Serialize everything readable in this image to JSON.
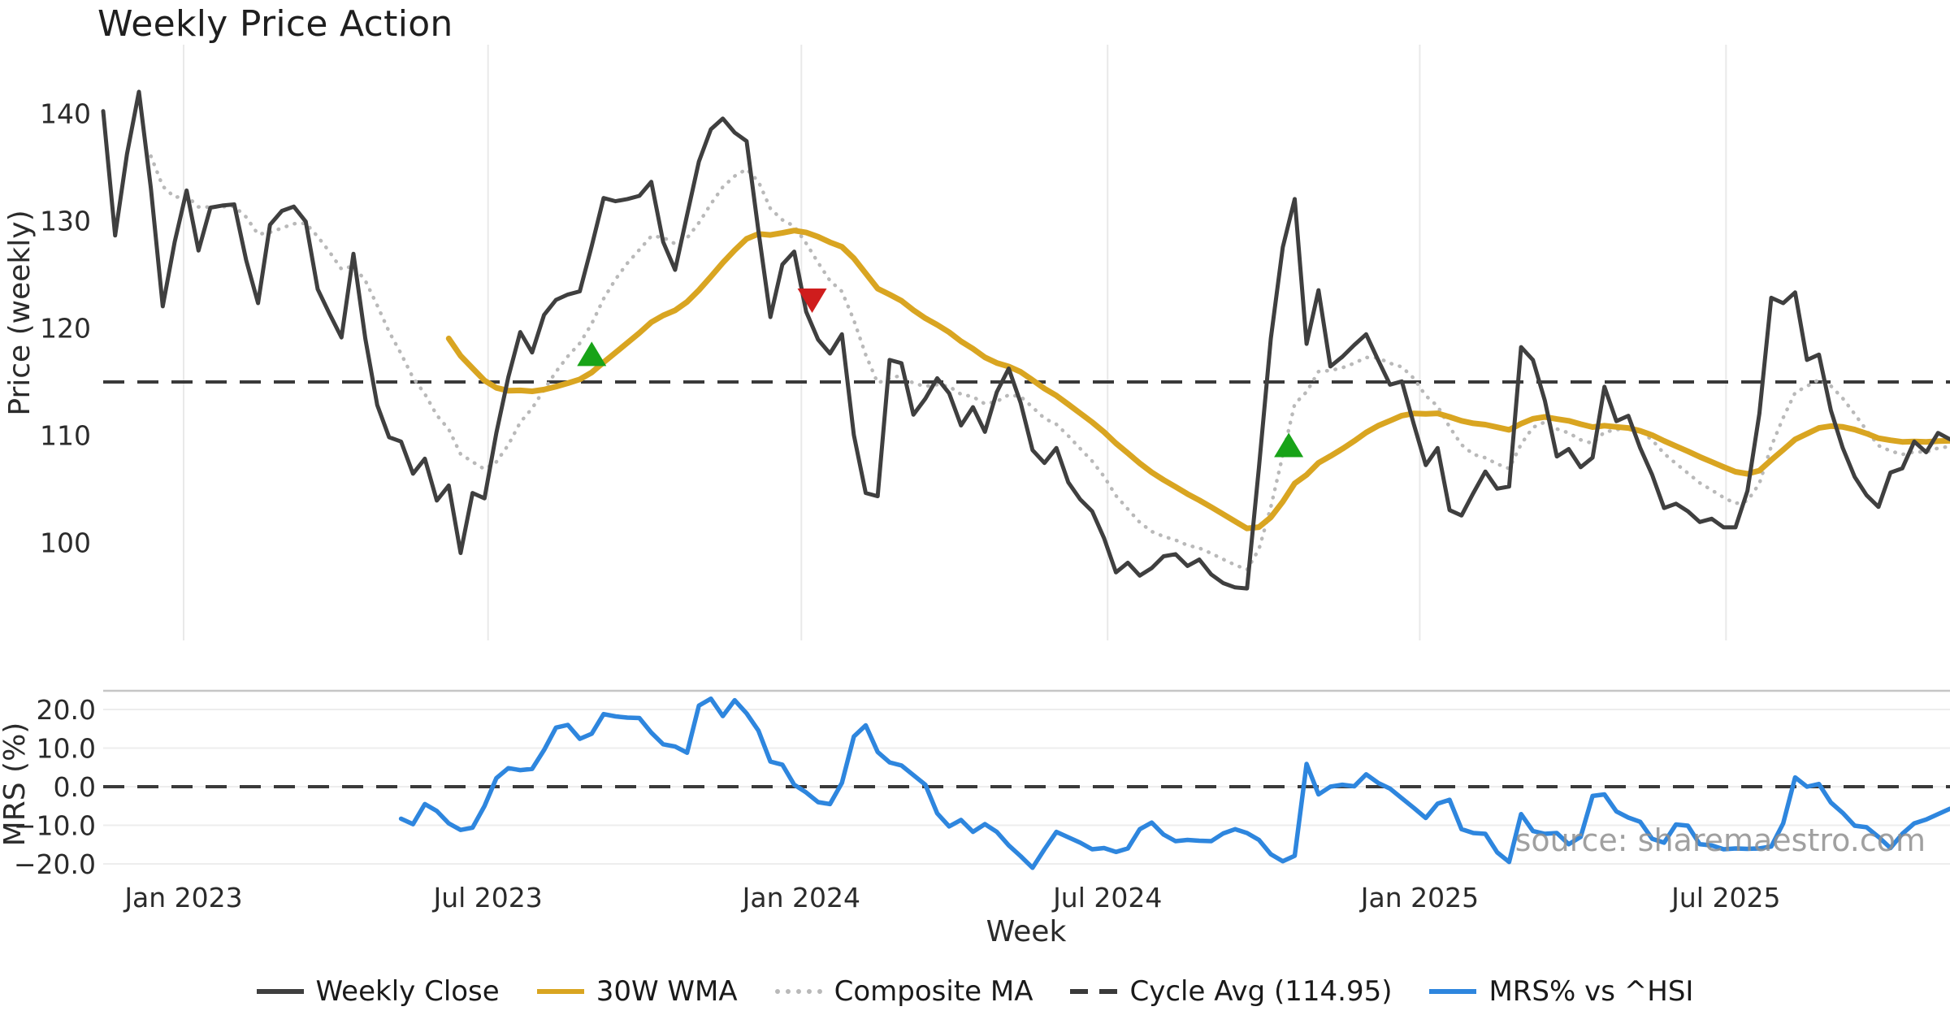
{
  "chart_data": {
    "type": "line",
    "title": "Weekly Price Action",
    "xlabel": "Week",
    "watermark": "source: sharemaestro.com",
    "frequency": "weekly",
    "x_ticks": [
      {
        "label": "Jan 2023",
        "week": 6.75
      },
      {
        "label": "Jul 2023",
        "week": 32.3
      },
      {
        "label": "Jan 2024",
        "week": 58.6
      },
      {
        "label": "Jul 2024",
        "week": 84.3
      },
      {
        "label": "Jan 2025",
        "week": 110.5
      },
      {
        "label": "Jul 2025",
        "week": 136.2
      }
    ],
    "panels": [
      {
        "ylabel": "Price (weekly)",
        "ylim": [
          95,
          143
        ],
        "grid": "vertical-only",
        "yticks": [
          {
            "label": "140",
            "value": 140
          },
          {
            "label": "130",
            "value": 130
          },
          {
            "label": "120",
            "value": 120
          },
          {
            "label": "110",
            "value": 110
          },
          {
            "label": "100",
            "value": 100
          }
        ],
        "cycle_avg": 114.95,
        "series": [
          {
            "name": "Weekly Close",
            "color": "#3f3f3f",
            "style": "solid",
            "width": 5,
            "start_week": 0,
            "values": [
              140.2,
              128.6,
              136.2,
              142.0,
              133.0,
              122.0,
              128.0,
              132.8,
              127.2,
              131.2,
              131.4,
              131.5,
              126.3,
              122.3,
              129.6,
              130.9,
              131.3,
              129.9,
              123.6,
              121.3,
              119.1,
              126.9,
              119.0,
              112.8,
              109.8,
              109.4,
              106.4,
              107.8,
              103.9,
              105.3,
              99.0,
              104.6,
              104.1,
              110.2,
              115.4,
              119.6,
              117.7,
              121.2,
              122.6,
              123.1,
              123.4,
              127.6,
              132.1,
              131.8,
              132.0,
              132.3,
              133.6,
              128.0,
              125.4,
              130.5,
              135.5,
              138.5,
              139.5,
              138.2,
              137.4,
              129.0,
              121.0,
              125.9,
              127.1,
              121.5,
              118.9,
              117.6,
              119.4,
              110.0,
              104.6,
              104.3,
              117.0,
              116.7,
              111.9,
              113.4,
              115.3,
              113.9,
              110.9,
              112.6,
              110.3,
              114.0,
              116.2,
              113.0,
              108.6,
              107.4,
              108.8,
              105.6,
              104.0,
              102.9,
              100.4,
              97.2,
              98.1,
              96.9,
              97.6,
              98.7,
              98.9,
              97.8,
              98.4,
              97.0,
              96.2,
              95.8,
              95.7,
              107.0,
              119.0,
              127.5,
              132.0,
              118.5,
              123.5,
              116.4,
              117.3,
              118.4,
              119.4,
              117.0,
              114.7,
              115.0,
              111.0,
              107.2,
              108.8,
              103.0,
              102.5,
              104.6,
              106.6,
              105.0,
              105.2,
              118.2,
              117.0,
              113.2,
              108.0,
              108.7,
              107.0,
              107.9,
              114.5,
              111.3,
              111.8,
              108.8,
              106.3,
              103.2,
              103.6,
              102.9,
              101.9,
              102.2,
              101.4,
              101.4,
              104.8,
              112.0,
              122.8,
              122.3,
              123.3,
              117.0,
              117.5,
              112.3,
              108.8,
              106.1,
              104.4,
              103.3,
              106.5,
              106.9,
              109.4,
              108.4,
              110.2,
              109.6
            ]
          },
          {
            "name": "30W WMA",
            "color": "#d9a521",
            "style": "solid",
            "width": 7,
            "derived": "wma_of_close",
            "window": 30,
            "start_week": 29
          },
          {
            "name": "Composite MA",
            "color": "#b9b9b9",
            "style": "dotted",
            "width": 4.5,
            "derived": "ema_of_close",
            "span": 9,
            "start_week": 4
          },
          {
            "name": "Cycle Avg (114.95)",
            "color": "#3a3a3a",
            "style": "dashed",
            "width": 4,
            "constant_value": 114.95
          }
        ],
        "markers": [
          {
            "shape": "triangle-up",
            "meaning": "buy-signal",
            "color": "#18a318",
            "week": 41,
            "value": 117.5
          },
          {
            "shape": "triangle-down",
            "meaning": "sell-signal",
            "color": "#cf1d1d",
            "week": 59.5,
            "value": 122.6
          },
          {
            "shape": "triangle-up",
            "meaning": "buy-signal",
            "color": "#18a318",
            "week": 99.5,
            "value": 109.0
          }
        ]
      },
      {
        "ylabel": "MRS (%)",
        "ylim": [
          -22,
          24
        ],
        "grid": "horizontal-only",
        "yticks": [
          {
            "label": "20.0",
            "value": 20
          },
          {
            "label": "10.0",
            "value": 10
          },
          {
            "label": "0.0",
            "value": 0
          },
          {
            "label": "−10.0",
            "value": -10
          },
          {
            "label": "−20.0",
            "value": -20
          }
        ],
        "zero_line": 0,
        "series": [
          {
            "name": "MRS% vs ^HSI",
            "color": "#2e86de",
            "style": "solid",
            "width": 5.5,
            "start_week": 25,
            "values": [
              -8.3,
              -9.7,
              -4.5,
              -6.3,
              -9.5,
              -11.2,
              -10.6,
              -5.0,
              2.2,
              4.8,
              4.3,
              4.6,
              9.5,
              15.3,
              16.0,
              12.4,
              13.7,
              18.8,
              18.2,
              17.9,
              17.8,
              14.0,
              11.0,
              10.4,
              8.8,
              21.0,
              22.8,
              18.3,
              22.4,
              19.0,
              14.5,
              6.5,
              5.7,
              0.5,
              -1.5,
              -4.0,
              -4.5,
              1.0,
              13.0,
              15.9,
              9.0,
              6.3,
              5.5,
              3.0,
              0.5,
              -6.9,
              -10.3,
              -8.6,
              -11.7,
              -9.7,
              -11.7,
              -15.2,
              -18.0,
              -21.0,
              -16.2,
              -11.7,
              -13.1,
              -14.5,
              -16.2,
              -15.9,
              -16.9,
              -16.0,
              -11.0,
              -9.3,
              -12.4,
              -14.1,
              -13.8,
              -14.0,
              -14.1,
              -12.1,
              -11.0,
              -12.0,
              -13.8,
              -17.5,
              -19.3,
              -17.9,
              5.9,
              -2.0,
              0.0,
              0.5,
              0.1,
              3.2,
              1.0,
              -0.5,
              -3.0,
              -5.5,
              -8.1,
              -4.4,
              -3.4,
              -11.0,
              -12.0,
              -12.2,
              -17.0,
              -19.5,
              -7.1,
              -11.5,
              -12.2,
              -12.0,
              -14.9,
              -13.0,
              -2.4,
              -2.0,
              -6.4,
              -8.0,
              -9.1,
              -13.5,
              -14.5,
              -9.8,
              -10.1,
              -14.9,
              -15.2,
              -16.2,
              -16.0,
              -16.1,
              -16.0,
              -15.5,
              -9.5,
              2.4,
              0.0,
              0.7,
              -4.1,
              -6.8,
              -10.1,
              -10.5,
              -13.0,
              -15.9,
              -12.2,
              -9.5,
              -8.5,
              -7.1,
              -5.7,
              -7.4
            ]
          }
        ]
      }
    ],
    "legend": [
      {
        "label": "Weekly Close",
        "color": "#3f3f3f",
        "style": "solid"
      },
      {
        "label": "30W WMA",
        "color": "#d9a521",
        "style": "solid"
      },
      {
        "label": "Composite MA",
        "color": "#b9b9b9",
        "style": "dotted"
      },
      {
        "label": "Cycle Avg (114.95)",
        "color": "#3a3a3a",
        "style": "dashed"
      },
      {
        "label": "MRS% vs ^HSI",
        "color": "#2e86de",
        "style": "solid"
      }
    ],
    "colors": {
      "grid_light": "#e9e9e9",
      "panel_border": "#c6c6c6",
      "tick_text": "#2b2b2b",
      "buy_marker": "#18a318",
      "sell_marker": "#cf1d1d"
    }
  }
}
